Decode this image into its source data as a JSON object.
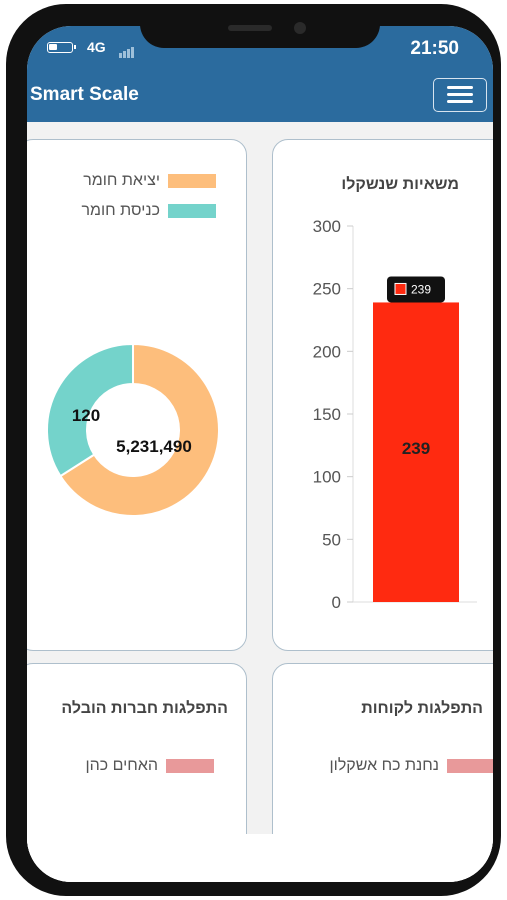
{
  "status_bar": {
    "network": "4G",
    "time": "21:50"
  },
  "navbar": {
    "brand": "Smart Scale",
    "menu_icon": "hamburger-icon"
  },
  "cards": {
    "weights": {
      "title": "משאיות שנשקלו",
      "chart_data": {
        "type": "bar",
        "categories": [
          ""
        ],
        "values": [
          239
        ],
        "ylim": [
          0,
          300
        ],
        "yticks": [
          0,
          50,
          100,
          150,
          200,
          250,
          300
        ],
        "data_label": "239",
        "tooltip": "239",
        "bar_color": "#ff2a10",
        "grid": false
      }
    },
    "material": {
      "legend": [
        {
          "label": "יציאת חומר",
          "color": "#fdbe7c"
        },
        {
          "label": "כניסת חומר",
          "color": "#74d3cb"
        }
      ],
      "chart_data": {
        "type": "pie",
        "donut": true,
        "categories": [
          "יציאת חומר",
          "כניסת חומר"
        ],
        "values": [
          5231490,
          120
        ],
        "value_labels": [
          "5,231,490",
          "120"
        ],
        "colors": [
          "#fdbe7c",
          "#74d3cb"
        ],
        "legend_position": "top"
      }
    },
    "customers": {
      "title": "התפלגות לקוחות",
      "legend": [
        {
          "label": "נחנת כח אשקלון",
          "color": "#e8999a"
        }
      ]
    },
    "carriers": {
      "title": "התפלגות חברות הובלה",
      "legend": [
        {
          "label": "האחים כהן",
          "color": "#e8999a"
        }
      ]
    }
  }
}
